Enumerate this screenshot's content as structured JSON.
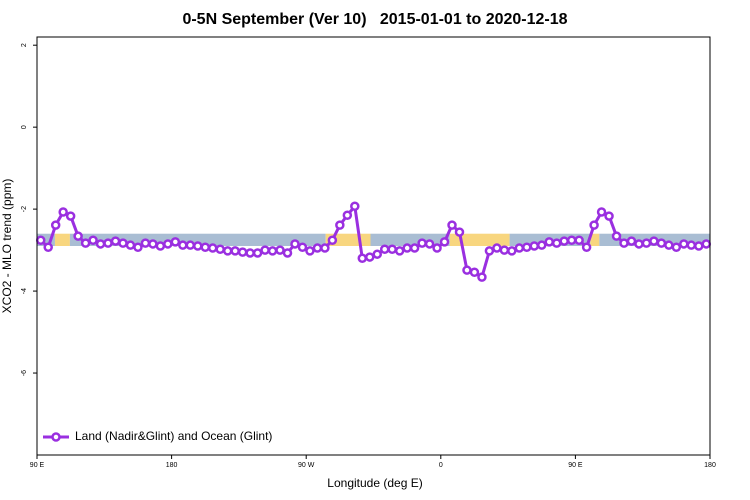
{
  "chart_data": {
    "type": "line",
    "title": "0-5N September (Ver 10)   2015-01-01 to 2020-12-18",
    "xlabel": "Longitude (deg E)",
    "ylabel": "XCO2 - MLO trend (ppm)",
    "xlim": [
      90,
      540
    ],
    "ylim": [
      -8,
      2.2
    ],
    "xticks": [
      {
        "value": 90,
        "label": "90 E"
      },
      180,
      {
        "value": 270,
        "label": "90 W"
      },
      {
        "value": 360,
        "label": "0"
      },
      {
        "value": 450,
        "label": "90 E"
      },
      {
        "value": 540,
        "label": "180"
      }
    ],
    "yticks": [
      2,
      0,
      -2,
      -4,
      -6
    ],
    "legend": "bottom-left",
    "band_ylim": [
      -2.9,
      -2.6
    ],
    "bands": [
      {
        "start": 90,
        "end": 102,
        "color": "#a9bdd3"
      },
      {
        "start": 102,
        "end": 112,
        "color": "#f8d67f"
      },
      {
        "start": 112,
        "end": 283,
        "color": "#a9bdd3"
      },
      {
        "start": 283,
        "end": 313,
        "color": "#f8d67f"
      },
      {
        "start": 313,
        "end": 366,
        "color": "#a9bdd3"
      },
      {
        "start": 366,
        "end": 406,
        "color": "#f8d67f"
      },
      {
        "start": 406,
        "end": 460,
        "color": "#a9bdd3"
      },
      {
        "start": 460,
        "end": 466,
        "color": "#f8d67f"
      },
      {
        "start": 466,
        "end": 540,
        "color": "#a9bdd3"
      }
    ],
    "series": [
      {
        "name": "Land (Nadir&Glint) and Ocean (Glint)",
        "color": "#9a2fe0",
        "x": [
          92.5,
          97.5,
          102.5,
          107.5,
          112.5,
          117.5,
          122.5,
          127.5,
          132.5,
          137.5,
          142.5,
          147.5,
          152.5,
          157.5,
          162.5,
          167.5,
          172.5,
          177.5,
          182.5,
          187.5,
          192.5,
          197.5,
          202.5,
          207.5,
          212.5,
          217.5,
          222.5,
          227.5,
          232.5,
          237.5,
          242.5,
          247.5,
          252.5,
          257.5,
          262.5,
          267.5,
          272.5,
          277.5,
          282.5,
          287.5,
          292.5,
          297.5,
          302.5,
          307.5,
          312.5,
          317.5,
          322.5,
          327.5,
          332.5,
          337.5,
          342.5,
          347.5,
          352.5,
          357.5,
          362.5,
          367.5,
          372.5,
          377.5,
          382.5,
          387.5,
          392.5,
          397.5,
          402.5,
          407.5,
          412.5,
          417.5,
          422.5,
          427.5,
          432.5,
          437.5,
          442.5,
          447.5,
          452.5,
          457.5,
          462.5,
          467.5,
          472.5,
          477.5,
          482.5,
          487.5,
          492.5,
          497.5,
          502.5,
          507.5,
          512.5,
          517.5,
          522.5,
          527.5,
          532.5,
          537.5
        ],
        "values": [
          -2.76,
          -2.93,
          -2.39,
          -2.07,
          -2.17,
          -2.66,
          -2.83,
          -2.76,
          -2.85,
          -2.83,
          -2.78,
          -2.83,
          -2.88,
          -2.93,
          -2.83,
          -2.85,
          -2.9,
          -2.85,
          -2.8,
          -2.88,
          -2.88,
          -2.9,
          -2.93,
          -2.95,
          -2.98,
          -3.02,
          -3.02,
          -3.05,
          -3.07,
          -3.07,
          -3.0,
          -3.02,
          -3.0,
          -3.07,
          -2.85,
          -2.93,
          -3.02,
          -2.95,
          -2.95,
          -2.76,
          -2.39,
          -2.15,
          -1.93,
          -3.2,
          -3.17,
          -3.1,
          -2.98,
          -2.98,
          -3.02,
          -2.95,
          -2.95,
          -2.83,
          -2.85,
          -2.95,
          -2.8,
          -2.39,
          -2.56,
          -3.49,
          -3.54,
          -3.66,
          -3.02,
          -2.95,
          -3.0,
          -3.02,
          -2.95,
          -2.93,
          -2.9,
          -2.88,
          -2.8,
          -2.83,
          -2.78,
          -2.76,
          -2.76,
          -2.93,
          -2.39,
          -2.07,
          -2.17,
          -2.66,
          -2.83,
          -2.78,
          -2.85,
          -2.83,
          -2.78,
          -2.83,
          -2.88,
          -2.93,
          -2.85,
          -2.88,
          -2.9,
          -2.85
        ]
      }
    ]
  }
}
